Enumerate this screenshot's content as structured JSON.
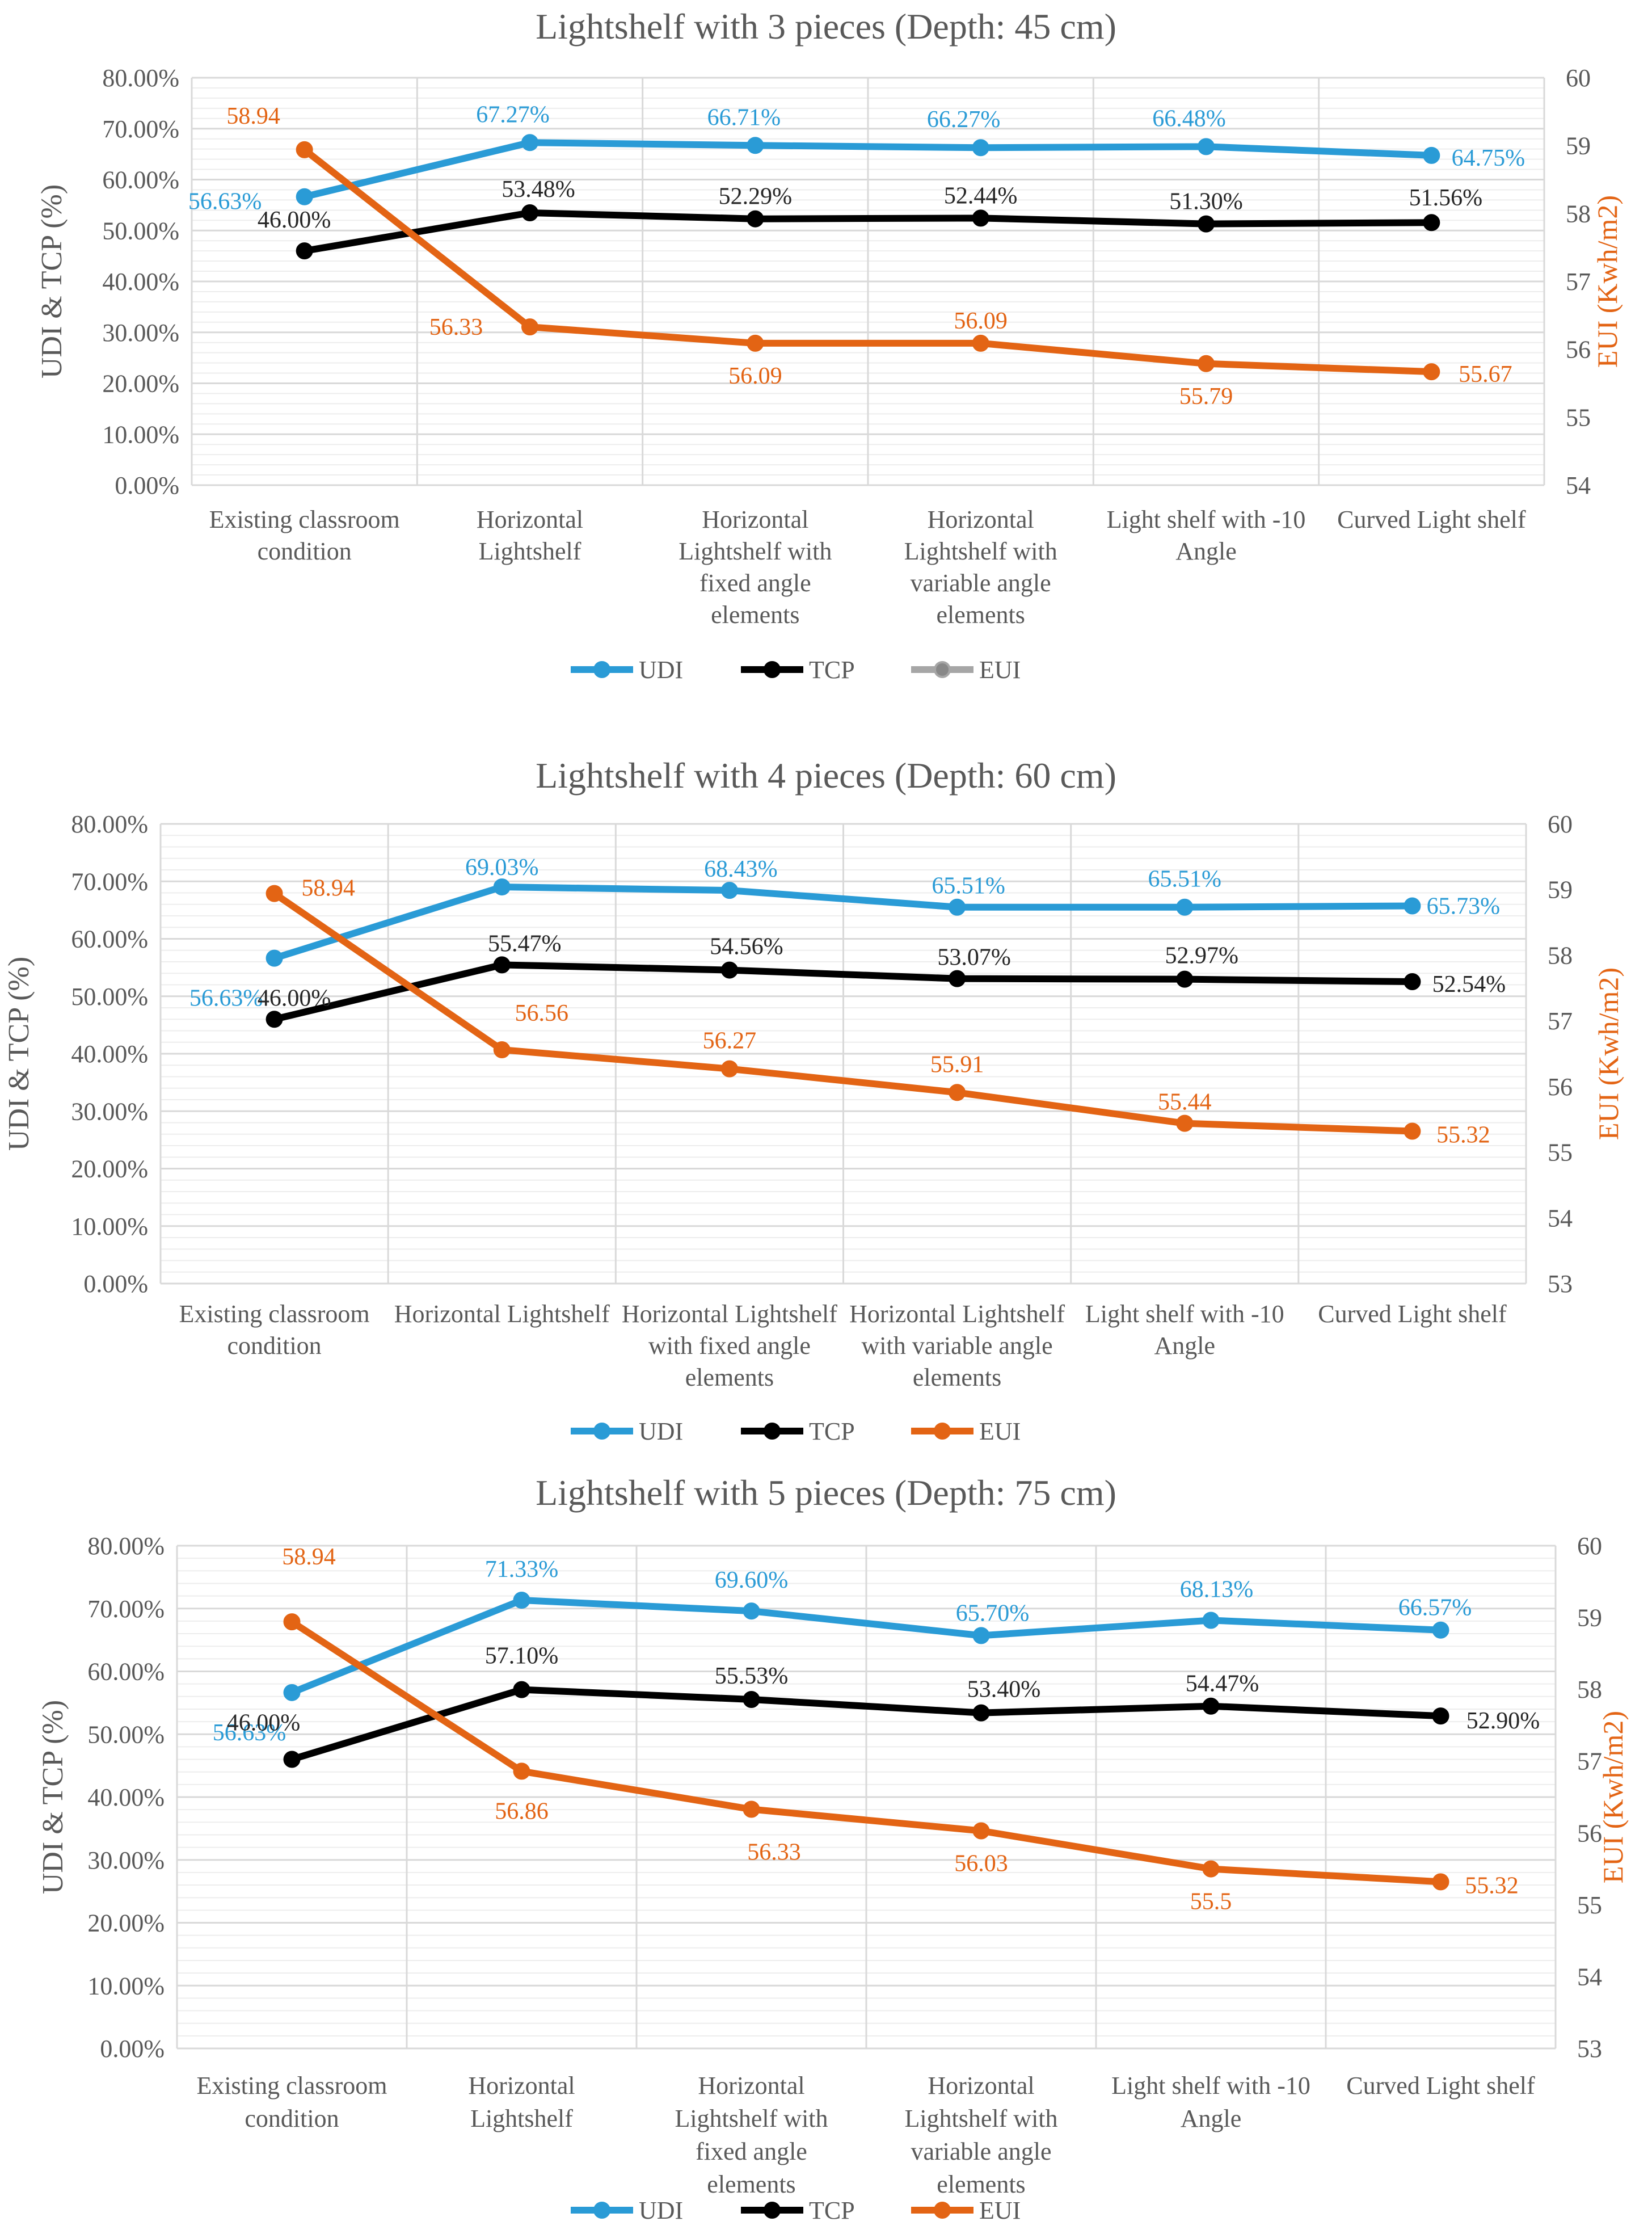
{
  "legend": {
    "udi": "UDI",
    "tcp": "TCP",
    "eui": "EUI"
  },
  "colors": {
    "udi": "#2A9BD6",
    "tcp": "#000000",
    "eui": "#E36414",
    "eui_legend_marker": "#888888",
    "grid": "#D9D9D9",
    "text": "#595959"
  },
  "chart_data": [
    {
      "type": "line",
      "title": "Lightshelf with 3 pieces (Depth: 45 cm)",
      "ylabel": "UDI & TCP (%)",
      "y2label": "EUI (Kwh/m2)",
      "ylim": [
        0,
        80
      ],
      "y2lim": [
        54,
        60
      ],
      "yticks": [
        "0.00%",
        "10.00%",
        "20.00%",
        "30.00%",
        "40.00%",
        "50.00%",
        "60.00%",
        "70.00%",
        "80.00%"
      ],
      "y2ticks": [
        "54",
        "55",
        "56",
        "57",
        "58",
        "59",
        "60"
      ],
      "categories": [
        [
          "Existing classroom",
          "condition"
        ],
        [
          "Horizontal",
          "Lightshelf"
        ],
        [
          "Horizontal",
          "Lightshelf with",
          "fixed angle",
          "elements"
        ],
        [
          "Horizontal",
          "Lightshelf with",
          "variable angle",
          "elements"
        ],
        [
          "Light shelf with -10",
          "Angle"
        ],
        [
          "Curved Light shelf"
        ]
      ],
      "series": [
        {
          "name": "UDI",
          "axis": "left",
          "values": [
            56.63,
            67.27,
            66.71,
            66.27,
            66.48,
            64.75
          ],
          "labels": [
            "56.63%",
            "67.27%",
            "66.71%",
            "66.27%",
            "66.48%",
            "64.75%"
          ]
        },
        {
          "name": "TCP",
          "axis": "left",
          "values": [
            46.0,
            53.48,
            52.29,
            52.44,
            51.3,
            51.56
          ],
          "labels": [
            "46.00%",
            "53.48%",
            "52.29%",
            "52.44%",
            "51.30%",
            "51.56%"
          ]
        },
        {
          "name": "EUI",
          "axis": "right",
          "values": [
            58.94,
            56.33,
            56.09,
            56.09,
            55.79,
            55.67
          ],
          "labels": [
            "58.94",
            "56.33",
            "56.09",
            "56.09",
            "55.79",
            "55.67"
          ]
        }
      ]
    },
    {
      "type": "line",
      "title": "Lightshelf with 4 pieces (Depth: 60 cm)",
      "ylabel": "UDI & TCP (%)",
      "y2label": "EUI (Kwh/m2)",
      "ylim": [
        0,
        80
      ],
      "y2lim": [
        53,
        60
      ],
      "yticks": [
        "0.00%",
        "10.00%",
        "20.00%",
        "30.00%",
        "40.00%",
        "50.00%",
        "60.00%",
        "70.00%",
        "80.00%"
      ],
      "y2ticks": [
        "53",
        "54",
        "55",
        "56",
        "57",
        "58",
        "59",
        "60"
      ],
      "categories": [
        [
          "Existing classroom",
          "condition"
        ],
        [
          "Horizontal Lightshelf"
        ],
        [
          "Horizontal Lightshelf",
          "with fixed angle",
          "elements"
        ],
        [
          "Horizontal Lightshelf",
          "with variable angle",
          "elements"
        ],
        [
          "Light shelf with -10",
          "Angle"
        ],
        [
          "Curved Light shelf"
        ]
      ],
      "series": [
        {
          "name": "UDI",
          "axis": "left",
          "values": [
            56.63,
            69.03,
            68.43,
            65.51,
            65.51,
            65.73
          ],
          "labels": [
            "56.63%",
            "69.03%",
            "68.43%",
            "65.51%",
            "65.51%",
            "65.73%"
          ]
        },
        {
          "name": "TCP",
          "axis": "left",
          "values": [
            46.0,
            55.47,
            54.56,
            53.07,
            52.97,
            52.54
          ],
          "labels": [
            "46.00%",
            "55.47%",
            "54.56%",
            "53.07%",
            "52.97%",
            "52.54%"
          ]
        },
        {
          "name": "EUI",
          "axis": "right",
          "values": [
            58.94,
            56.56,
            56.27,
            55.91,
            55.44,
            55.32
          ],
          "labels": [
            "58.94",
            "56.56",
            "56.27",
            "55.91",
            "55.44",
            "55.32"
          ]
        }
      ]
    },
    {
      "type": "line",
      "title": "Lightshelf with 5 pieces (Depth: 75 cm)",
      "ylabel": "UDI & TCP (%)",
      "y2label": "EUI (Kwh/m2)",
      "ylim": [
        0,
        80
      ],
      "y2lim": [
        53,
        60
      ],
      "yticks": [
        "0.00%",
        "10.00%",
        "20.00%",
        "30.00%",
        "40.00%",
        "50.00%",
        "60.00%",
        "70.00%",
        "80.00%"
      ],
      "y2ticks": [
        "53",
        "54",
        "55",
        "56",
        "57",
        "58",
        "59",
        "60"
      ],
      "categories": [
        [
          "Existing classroom",
          "condition"
        ],
        [
          "Horizontal",
          "Lightshelf"
        ],
        [
          "Horizontal",
          "Lightshelf with",
          "fixed angle",
          "elements"
        ],
        [
          "Horizontal",
          "Lightshelf with",
          "variable angle",
          "elements"
        ],
        [
          "Light shelf with -10",
          "Angle"
        ],
        [
          "Curved Light shelf"
        ]
      ],
      "series": [
        {
          "name": "UDI",
          "axis": "left",
          "values": [
            56.63,
            71.33,
            69.6,
            65.7,
            68.13,
            66.57
          ],
          "labels": [
            "56.63%",
            "71.33%",
            "69.60%",
            "65.70%",
            "68.13%",
            "66.57%"
          ]
        },
        {
          "name": "TCP",
          "axis": "left",
          "values": [
            46.0,
            57.1,
            55.53,
            53.4,
            54.47,
            52.9
          ],
          "labels": [
            "46.00%",
            "57.10%",
            "55.53%",
            "53.40%",
            "54.47%",
            "52.90%"
          ]
        },
        {
          "name": "EUI",
          "axis": "right",
          "values": [
            58.94,
            56.86,
            56.33,
            56.03,
            55.5,
            55.32
          ],
          "labels": [
            "58.94",
            "56.86",
            "56.33",
            "56.03",
            "55.5",
            "55.32"
          ]
        }
      ]
    }
  ]
}
